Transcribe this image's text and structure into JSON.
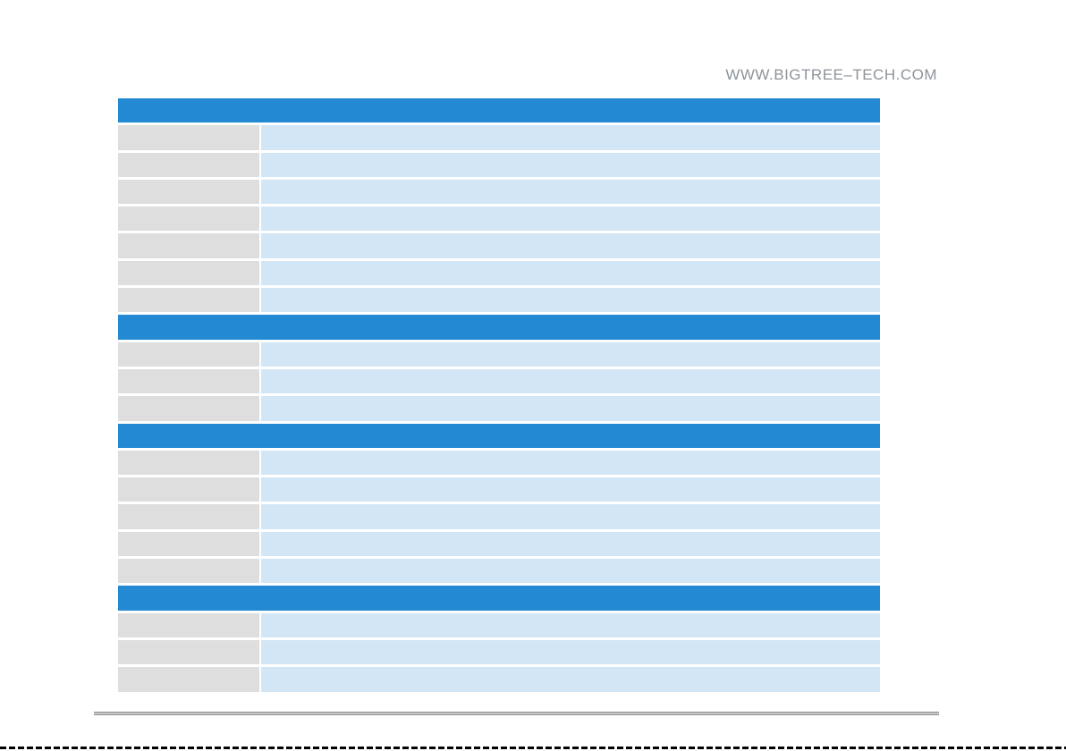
{
  "page": {
    "website_url": "WWW.BIGTREE–TECH.COM"
  },
  "colors": {
    "section_header_bg": "#2289d2",
    "label_cell_bg": "#dedede",
    "value_cell_bg": "#d3e6f5",
    "website_text": "#8d9399",
    "rule_dark": "#8f8f8f",
    "rule_light": "#c9c9c9",
    "cut_line": "#000000"
  },
  "spec_table": {
    "sections": [
      {
        "title": "",
        "rows": [
          {
            "label": "",
            "value": ""
          },
          {
            "label": "",
            "value": ""
          },
          {
            "label": "",
            "value": ""
          },
          {
            "label": "",
            "value": ""
          },
          {
            "label": "",
            "value": ""
          },
          {
            "label": "",
            "value": ""
          },
          {
            "label": "",
            "value": ""
          }
        ]
      },
      {
        "title": "",
        "rows": [
          {
            "label": "",
            "value": ""
          },
          {
            "label": "",
            "value": ""
          },
          {
            "label": "",
            "value": ""
          }
        ]
      },
      {
        "title": "",
        "rows": [
          {
            "label": "",
            "value": ""
          },
          {
            "label": "",
            "value": ""
          },
          {
            "label": "",
            "value": ""
          },
          {
            "label": "",
            "value": ""
          },
          {
            "label": "",
            "value": ""
          }
        ]
      },
      {
        "title": "",
        "rows": [
          {
            "label": "",
            "value": ""
          },
          {
            "label": "",
            "value": ""
          },
          {
            "label": "",
            "value": ""
          }
        ]
      }
    ]
  }
}
